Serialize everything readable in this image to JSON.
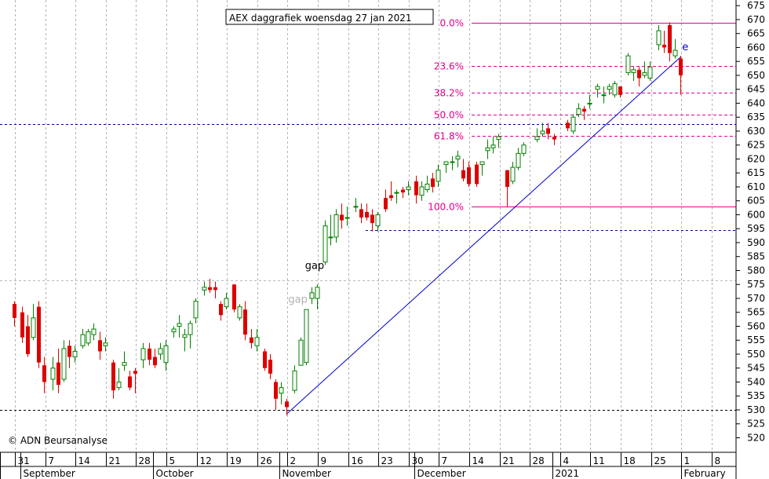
{
  "chart_data": {
    "type": "candlestick",
    "title": "AEX daggrafiek woensdag 27 jan 2021",
    "copyright": "© ADN Beursanalyse",
    "ylim": [
      515,
      677
    ],
    "y_ticks": [
      520,
      525,
      530,
      535,
      540,
      545,
      550,
      555,
      560,
      565,
      570,
      575,
      580,
      585,
      590,
      595,
      600,
      605,
      610,
      615,
      620,
      625,
      630,
      635,
      640,
      645,
      650,
      655,
      660,
      665,
      670,
      675
    ],
    "x_start_date": "2020-08-28",
    "x_end_date": "2021-02-10",
    "day_ticks": [
      {
        "label": "31",
        "date": "2020-08-31"
      },
      {
        "label": "7",
        "date": "2020-09-07"
      },
      {
        "label": "14",
        "date": "2020-09-14"
      },
      {
        "label": "21",
        "date": "2020-09-21"
      },
      {
        "label": "28",
        "date": "2020-09-28"
      },
      {
        "label": "5",
        "date": "2020-10-05"
      },
      {
        "label": "12",
        "date": "2020-10-12"
      },
      {
        "label": "19",
        "date": "2020-10-19"
      },
      {
        "label": "26",
        "date": "2020-10-26"
      },
      {
        "label": "2",
        "date": "2020-11-02"
      },
      {
        "label": "9",
        "date": "2020-11-09"
      },
      {
        "label": "16",
        "date": "2020-11-16"
      },
      {
        "label": "23",
        "date": "2020-11-23"
      },
      {
        "label": "30",
        "date": "2020-11-30"
      },
      {
        "label": "7",
        "date": "2020-12-07"
      },
      {
        "label": "14",
        "date": "2020-12-14"
      },
      {
        "label": "21",
        "date": "2020-12-21"
      },
      {
        "label": "28",
        "date": "2020-12-28"
      },
      {
        "label": "4",
        "date": "2021-01-04"
      },
      {
        "label": "11",
        "date": "2021-01-11"
      },
      {
        "label": "18",
        "date": "2021-01-18"
      },
      {
        "label": "25",
        "date": "2021-01-25"
      },
      {
        "label": "1",
        "date": "2021-02-01"
      },
      {
        "label": "8",
        "date": "2021-02-08"
      }
    ],
    "month_ticks": [
      {
        "label": "September",
        "date": "2020-09-01"
      },
      {
        "label": "October",
        "date": "2020-10-01"
      },
      {
        "label": "November",
        "date": "2020-11-01"
      },
      {
        "label": "December",
        "date": "2020-12-01"
      },
      {
        "label": "2021",
        "date": "2021-01-01"
      },
      {
        "label": "February",
        "date": "2021-02-01"
      }
    ],
    "candles": [
      {
        "date": "2020-08-28",
        "o": 568,
        "h": 569,
        "l": 560,
        "c": 563
      },
      {
        "date": "2020-08-31",
        "o": 565,
        "h": 567,
        "l": 554,
        "c": 556
      },
      {
        "date": "2020-09-01",
        "o": 560,
        "h": 564,
        "l": 549,
        "c": 550
      },
      {
        "date": "2020-09-02",
        "o": 556,
        "h": 568,
        "l": 555,
        "c": 563
      },
      {
        "date": "2020-09-03",
        "o": 567,
        "h": 569,
        "l": 545,
        "c": 547
      },
      {
        "date": "2020-09-04",
        "o": 546,
        "h": 549,
        "l": 536,
        "c": 540
      },
      {
        "date": "2020-09-07",
        "o": 541,
        "h": 549,
        "l": 537,
        "c": 545
      },
      {
        "date": "2020-09-08",
        "o": 547,
        "h": 552,
        "l": 536,
        "c": 539
      },
      {
        "date": "2020-09-09",
        "o": 541,
        "h": 555,
        "l": 540,
        "c": 552
      },
      {
        "date": "2020-09-10",
        "o": 553,
        "h": 555,
        "l": 545,
        "c": 549
      },
      {
        "date": "2020-09-11",
        "o": 549,
        "h": 553,
        "l": 547,
        "c": 551
      },
      {
        "date": "2020-09-14",
        "o": 553,
        "h": 559,
        "l": 552,
        "c": 557
      },
      {
        "date": "2020-09-15",
        "o": 554,
        "h": 559,
        "l": 553,
        "c": 558
      },
      {
        "date": "2020-09-16",
        "o": 557,
        "h": 561,
        "l": 555,
        "c": 559
      },
      {
        "date": "2020-09-17",
        "o": 555,
        "h": 558,
        "l": 548,
        "c": 551
      },
      {
        "date": "2020-09-18",
        "o": 553,
        "h": 556,
        "l": 551,
        "c": 554
      },
      {
        "date": "2020-09-21",
        "o": 547,
        "h": 548,
        "l": 534,
        "c": 537
      },
      {
        "date": "2020-09-22",
        "o": 538,
        "h": 545,
        "l": 537,
        "c": 540
      },
      {
        "date": "2020-09-23",
        "o": 546,
        "h": 551,
        "l": 544,
        "c": 547
      },
      {
        "date": "2020-09-24",
        "o": 542,
        "h": 544,
        "l": 537,
        "c": 538
      },
      {
        "date": "2020-09-25",
        "o": 544,
        "h": 545,
        "l": 536,
        "c": 543
      },
      {
        "date": "2020-09-28",
        "o": 548,
        "h": 554,
        "l": 545,
        "c": 552
      },
      {
        "date": "2020-09-29",
        "o": 552,
        "h": 554,
        "l": 546,
        "c": 548
      },
      {
        "date": "2020-09-30",
        "o": 549,
        "h": 552,
        "l": 545,
        "c": 546
      },
      {
        "date": "2020-10-01",
        "o": 550,
        "h": 554,
        "l": 548,
        "c": 552
      },
      {
        "date": "2020-10-02",
        "o": 547,
        "h": 555,
        "l": 544,
        "c": 553
      },
      {
        "date": "2020-10-05",
        "o": 558,
        "h": 560,
        "l": 556,
        "c": 559
      },
      {
        "date": "2020-10-06",
        "o": 560,
        "h": 564,
        "l": 556,
        "c": 561
      },
      {
        "date": "2020-10-07",
        "o": 556,
        "h": 559,
        "l": 551,
        "c": 557
      },
      {
        "date": "2020-10-08",
        "o": 557,
        "h": 562,
        "l": 552,
        "c": 561
      },
      {
        "date": "2020-10-09",
        "o": 563,
        "h": 570,
        "l": 561,
        "c": 569
      },
      {
        "date": "2020-10-12",
        "o": 573,
        "h": 576,
        "l": 571,
        "c": 574
      },
      {
        "date": "2020-10-13",
        "o": 574,
        "h": 577,
        "l": 572,
        "c": 573
      },
      {
        "date": "2020-10-14",
        "o": 574,
        "h": 576,
        "l": 570,
        "c": 573
      },
      {
        "date": "2020-10-15",
        "o": 568,
        "h": 569,
        "l": 562,
        "c": 564
      },
      {
        "date": "2020-10-16",
        "o": 567,
        "h": 572,
        "l": 566,
        "c": 570
      },
      {
        "date": "2020-10-19",
        "o": 575,
        "h": 575,
        "l": 565,
        "c": 566
      },
      {
        "date": "2020-10-20",
        "o": 563,
        "h": 568,
        "l": 562,
        "c": 567
      },
      {
        "date": "2020-10-21",
        "o": 566,
        "h": 569,
        "l": 555,
        "c": 557
      },
      {
        "date": "2020-10-22",
        "o": 556,
        "h": 559,
        "l": 552,
        "c": 554
      },
      {
        "date": "2020-10-23",
        "o": 553,
        "h": 559,
        "l": 551,
        "c": 556
      },
      {
        "date": "2020-10-26",
        "o": 551,
        "h": 552,
        "l": 544,
        "c": 545
      },
      {
        "date": "2020-10-27",
        "o": 548,
        "h": 550,
        "l": 541,
        "c": 543
      },
      {
        "date": "2020-10-28",
        "o": 540,
        "h": 541,
        "l": 530,
        "c": 534
      },
      {
        "date": "2020-10-29",
        "o": 536,
        "h": 540,
        "l": 532,
        "c": 538
      },
      {
        "date": "2020-10-30",
        "o": 533,
        "h": 534,
        "l": 528,
        "c": 531
      },
      {
        "date": "2020-11-02",
        "o": 537,
        "h": 546,
        "l": 536,
        "c": 544
      },
      {
        "date": "2020-11-03",
        "o": 546,
        "h": 556,
        "l": 546,
        "c": 555
      },
      {
        "date": "2020-11-04",
        "o": 547,
        "h": 566,
        "l": 546,
        "c": 566
      },
      {
        "date": "2020-11-05",
        "o": 570,
        "h": 574,
        "l": 568,
        "c": 572
      },
      {
        "date": "2020-11-06",
        "o": 570,
        "h": 575,
        "l": 566,
        "c": 574
      },
      {
        "date": "2020-11-09",
        "o": 583,
        "h": 598,
        "l": 582,
        "c": 596
      },
      {
        "date": "2020-11-10",
        "o": 592,
        "h": 600,
        "l": 589,
        "c": 592
      },
      {
        "date": "2020-11-11",
        "o": 592,
        "h": 602,
        "l": 590,
        "c": 600
      },
      {
        "date": "2020-11-12",
        "o": 600,
        "h": 604,
        "l": 595,
        "c": 598
      },
      {
        "date": "2020-11-13",
        "o": 599,
        "h": 603,
        "l": 596,
        "c": 599
      },
      {
        "date": "2020-11-16",
        "o": 603,
        "h": 606,
        "l": 601,
        "c": 603
      },
      {
        "date": "2020-11-17",
        "o": 602,
        "h": 604,
        "l": 597,
        "c": 599
      },
      {
        "date": "2020-11-18",
        "o": 601,
        "h": 604,
        "l": 598,
        "c": 599
      },
      {
        "date": "2020-11-19",
        "o": 600,
        "h": 602,
        "l": 594,
        "c": 597
      },
      {
        "date": "2020-11-20",
        "o": 596,
        "h": 601,
        "l": 594,
        "c": 600
      },
      {
        "date": "2020-11-23",
        "o": 606,
        "h": 609,
        "l": 601,
        "c": 602
      },
      {
        "date": "2020-11-24",
        "o": 607,
        "h": 612,
        "l": 605,
        "c": 606
      },
      {
        "date": "2020-11-25",
        "o": 608,
        "h": 609,
        "l": 604,
        "c": 608
      },
      {
        "date": "2020-11-26",
        "o": 609,
        "h": 610,
        "l": 606,
        "c": 608
      },
      {
        "date": "2020-11-27",
        "o": 609,
        "h": 612,
        "l": 607,
        "c": 610
      },
      {
        "date": "2020-11-30",
        "o": 612,
        "h": 614,
        "l": 604,
        "c": 607
      },
      {
        "date": "2020-12-01",
        "o": 607,
        "h": 612,
        "l": 605,
        "c": 610
      },
      {
        "date": "2020-12-02",
        "o": 609,
        "h": 614,
        "l": 608,
        "c": 611
      },
      {
        "date": "2020-12-03",
        "o": 613,
        "h": 615,
        "l": 608,
        "c": 610
      },
      {
        "date": "2020-12-04",
        "o": 612,
        "h": 618,
        "l": 610,
        "c": 616
      },
      {
        "date": "2020-12-07",
        "o": 618,
        "h": 619,
        "l": 615,
        "c": 619
      },
      {
        "date": "2020-12-08",
        "o": 619,
        "h": 621,
        "l": 616,
        "c": 619
      },
      {
        "date": "2020-12-09",
        "o": 620,
        "h": 623,
        "l": 617,
        "c": 621
      },
      {
        "date": "2020-12-10",
        "o": 616,
        "h": 620,
        "l": 612,
        "c": 613
      },
      {
        "date": "2020-12-11",
        "o": 617,
        "h": 619,
        "l": 610,
        "c": 611
      },
      {
        "date": "2020-12-14",
        "o": 618,
        "h": 619,
        "l": 610,
        "c": 611
      },
      {
        "date": "2020-12-15",
        "o": 618,
        "h": 619,
        "l": 614,
        "c": 619
      },
      {
        "date": "2020-12-16",
        "o": 623,
        "h": 627,
        "l": 620,
        "c": 624
      },
      {
        "date": "2020-12-17",
        "o": 624,
        "h": 628,
        "l": 622,
        "c": 625
      },
      {
        "date": "2020-12-18",
        "o": 627,
        "h": 629,
        "l": 624,
        "c": 628
      },
      {
        "date": "2020-12-21",
        "o": 616,
        "h": 616,
        "l": 603,
        "c": 610
      },
      {
        "date": "2020-12-22",
        "o": 612,
        "h": 619,
        "l": 611,
        "c": 617
      },
      {
        "date": "2020-12-23",
        "o": 617,
        "h": 624,
        "l": 616,
        "c": 622
      },
      {
        "date": "2020-12-24",
        "o": 622,
        "h": 626,
        "l": 621,
        "c": 625
      },
      {
        "date": "2020-12-28",
        "o": 627,
        "h": 631,
        "l": 626,
        "c": 628
      },
      {
        "date": "2020-12-29",
        "o": 629,
        "h": 633,
        "l": 628,
        "c": 630
      },
      {
        "date": "2020-12-30",
        "o": 631,
        "h": 633,
        "l": 627,
        "c": 629
      },
      {
        "date": "2020-12-31",
        "o": 628,
        "h": 629,
        "l": 625,
        "c": 627
      },
      {
        "date": "2021-01-04",
        "o": 633,
        "h": 634,
        "l": 630,
        "c": 631
      },
      {
        "date": "2021-01-05",
        "o": 630,
        "h": 636,
        "l": 629,
        "c": 635
      },
      {
        "date": "2021-01-06",
        "o": 636,
        "h": 640,
        "l": 635,
        "c": 638
      },
      {
        "date": "2021-01-07",
        "o": 638,
        "h": 639,
        "l": 634,
        "c": 637
      },
      {
        "date": "2021-01-08",
        "o": 640,
        "h": 643,
        "l": 638,
        "c": 640
      },
      {
        "date": "2021-01-11",
        "o": 645,
        "h": 647,
        "l": 642,
        "c": 646
      },
      {
        "date": "2021-01-12",
        "o": 643,
        "h": 646,
        "l": 640,
        "c": 643
      },
      {
        "date": "2021-01-13",
        "o": 645,
        "h": 647,
        "l": 643,
        "c": 646
      },
      {
        "date": "2021-01-14",
        "o": 643,
        "h": 648,
        "l": 642,
        "c": 647
      },
      {
        "date": "2021-01-15",
        "o": 646,
        "h": 646,
        "l": 642,
        "c": 643
      },
      {
        "date": "2021-01-18",
        "o": 651,
        "h": 658,
        "l": 650,
        "c": 657
      },
      {
        "date": "2021-01-19",
        "o": 651,
        "h": 653,
        "l": 648,
        "c": 652
      },
      {
        "date": "2021-01-20",
        "o": 652,
        "h": 653,
        "l": 646,
        "c": 649
      },
      {
        "date": "2021-01-21",
        "o": 650,
        "h": 655,
        "l": 649,
        "c": 651
      },
      {
        "date": "2021-01-22",
        "o": 649,
        "h": 655,
        "l": 648,
        "c": 653
      },
      {
        "date": "2021-01-25",
        "o": 661,
        "h": 668,
        "l": 659,
        "c": 666
      },
      {
        "date": "2021-01-26",
        "o": 661,
        "h": 666,
        "l": 658,
        "c": 660
      },
      {
        "date": "2021-01-27",
        "o": 668,
        "h": 669,
        "l": 655,
        "c": 658
      },
      {
        "date": "2021-01-28",
        "o": 657,
        "h": 663,
        "l": 656,
        "c": 659
      },
      {
        "date": "2021-01-29",
        "o": 656,
        "h": 657,
        "l": 643,
        "c": 650
      }
    ],
    "horizontal_lines": [
      {
        "value": 632.5,
        "color": "#00008b",
        "style": "dashed",
        "extent": "full"
      },
      {
        "value": 594.5,
        "color": "#00008b",
        "style": "dashed",
        "extent": "from-2020-11-19"
      },
      {
        "value": 576.5,
        "color": "#b8b8b8",
        "style": "dashed",
        "extent": "full"
      },
      {
        "value": 530,
        "color": "#000000",
        "style": "dashed",
        "extent": "full"
      }
    ],
    "fibonacci": {
      "from_date": "2020-12-14",
      "high": 669,
      "low": 603,
      "color": "#e0008c",
      "levels": [
        {
          "label": "0.0%",
          "value": 669,
          "style": "solid"
        },
        {
          "label": "23.6%",
          "value": 653.4,
          "style": "dashed"
        },
        {
          "label": "38.2%",
          "value": 643.8,
          "style": "dashed"
        },
        {
          "label": "50.0%",
          "value": 636,
          "style": "dashed"
        },
        {
          "label": "61.8%",
          "value": 628.2,
          "style": "dashed"
        },
        {
          "label": "100.0%",
          "value": 603,
          "style": "solid"
        }
      ]
    },
    "trendline": {
      "color": "#0000cc",
      "points": [
        {
          "date": "2020-10-30",
          "value": 528.5
        },
        {
          "date": "2021-01-29",
          "value": 656.5
        }
      ]
    },
    "annotations": [
      {
        "text": "gap",
        "date": "2020-11-05",
        "value": 580.5,
        "color": "#000000"
      },
      {
        "text": "gap",
        "date": "2020-11-02",
        "value": 568.5,
        "color": "#b0b0b0"
      },
      {
        "text": "e",
        "date": "2021-02-01",
        "value": 659,
        "color": "#0000cc"
      }
    ],
    "colors": {
      "up": "#008000",
      "down": "#dd0000",
      "grid": "#b4b4b4",
      "background": "#ffffff"
    },
    "grid": true
  }
}
